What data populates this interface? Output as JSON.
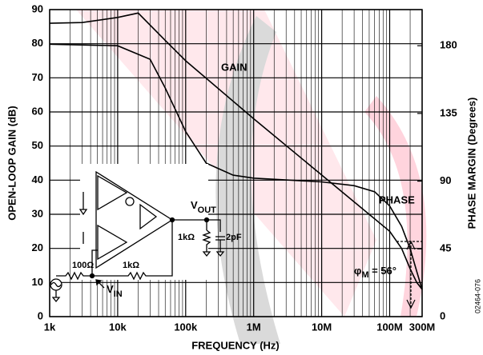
{
  "chart_data": {
    "type": "line",
    "xlabel": "FREQUENCY (Hz)",
    "ylabel": "OPEN-LOOP GAIN (dB)",
    "y2label": "PHASE MARGIN (Degrees)",
    "xscale": "log",
    "grid": true,
    "xlim": [
      1000,
      300000000
    ],
    "xticks": [
      {
        "value": 1000,
        "label": "1k"
      },
      {
        "value": 10000,
        "label": "10k"
      },
      {
        "value": 100000,
        "label": "100k"
      },
      {
        "value": 1000000,
        "label": "1M"
      },
      {
        "value": 10000000,
        "label": "10M"
      },
      {
        "value": 100000000,
        "label": "100M"
      },
      {
        "value": 300000000,
        "label": "300M"
      }
    ],
    "ylim": [
      0,
      90
    ],
    "yticks": [
      0,
      10,
      20,
      30,
      40,
      50,
      60,
      70,
      80,
      90
    ],
    "y2lim": [
      0,
      204
    ],
    "y2ticks": [
      0,
      45,
      90,
      135,
      180
    ],
    "series": [
      {
        "name": "GAIN",
        "color": "#000000",
        "x": [
          1000,
          3000,
          10000,
          20000,
          50000,
          100000,
          1000000,
          10000000,
          100000000,
          150000000,
          200000000,
          250000000,
          300000000
        ],
        "values": [
          86,
          86.2,
          87.7,
          89,
          81,
          75,
          58,
          41.5,
          25,
          20,
          14,
          10,
          8
        ]
      },
      {
        "name": "PHASE",
        "color": "#000000",
        "axis": "y2",
        "x": [
          1000,
          10000,
          30000,
          50000,
          100000,
          200000,
          500000,
          1000000,
          10000000,
          30000000,
          60000000,
          100000000,
          150000000,
          200000000,
          250000000,
          300000000
        ],
        "values": [
          181,
          180,
          171,
          152,
          123,
          102,
          94,
          92,
          89.5,
          87,
          83,
          73.5,
          60,
          45,
          30,
          18
        ]
      }
    ],
    "annotations": {
      "phi": "φ",
      "phi_sub": "M",
      "phi_text": " = 56°",
      "figure_id": "02464-076",
      "circuit": {
        "v": "V",
        "out": "OUT",
        "in": "IN",
        "r_load": "1kΩ",
        "c_load": "2pF",
        "r_in": "100Ω",
        "r_fb": "1kΩ"
      }
    }
  }
}
